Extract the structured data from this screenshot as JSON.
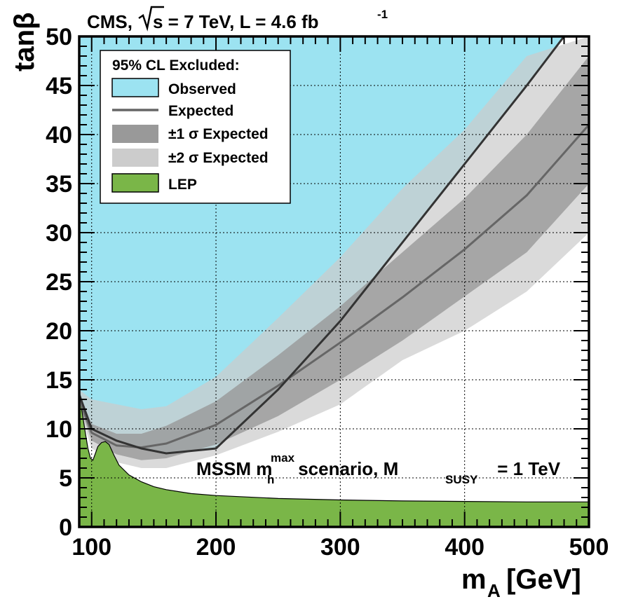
{
  "chart_data": {
    "type": "area",
    "title": "CMS, √s = 7 TeV, L = 4.6 fb-1",
    "header": {
      "experiment": "CMS,",
      "energy": "s = 7 TeV, L = 4.6 fb",
      "lumi_exponent": "-1"
    },
    "xlabel": {
      "main": "m",
      "sub": "A",
      "unit": " [GeV]"
    },
    "ylabel": "tanβ",
    "xlim": [
      90,
      500
    ],
    "ylim": [
      0,
      50
    ],
    "x_ticks": [
      100,
      200,
      300,
      400,
      500
    ],
    "y_ticks": [
      0,
      5,
      10,
      15,
      20,
      25,
      30,
      35,
      40,
      45,
      50
    ],
    "x_tick_labels": [
      "100",
      "200",
      "300",
      "400",
      "500"
    ],
    "y_tick_labels": [
      "0",
      "5",
      "10",
      "15",
      "20",
      "25",
      "30",
      "35",
      "40",
      "45",
      "50"
    ],
    "grid": true,
    "legend": {
      "title": "95% CL Excluded:",
      "position": "top-left",
      "entries": [
        {
          "label": "Observed",
          "style": "fill",
          "color": "#9ce3f1"
        },
        {
          "label": "Expected",
          "style": "line",
          "color": "#666666"
        },
        {
          "label": "±1 σ Expected",
          "style": "fill",
          "color": "#999999"
        },
        {
          "label": "±2 σ Expected",
          "style": "fill",
          "color": "#cccccc"
        },
        {
          "label": "LEP",
          "style": "fill",
          "color": "#7ab648"
        }
      ]
    },
    "annotation": {
      "part1": "MSSM m",
      "part1_sub": "h",
      "part1_sup": "max",
      "part2": " scenario, M",
      "part2_sub": "SUSY",
      "part3": " = 1 TeV"
    },
    "colors": {
      "observed": "#9ce3f1",
      "one_sigma": "#999999",
      "two_sigma": "#cccccc",
      "lep": "#7ab648",
      "expected_line": "#666666",
      "observed_line": "#333333"
    },
    "observed_limit": {
      "x": [
        90,
        100,
        120,
        140,
        160,
        200,
        250,
        300,
        350,
        400,
        450,
        480
      ],
      "y": [
        13.5,
        10.0,
        8.8,
        8.0,
        7.5,
        8.0,
        14.0,
        21.0,
        29.0,
        37.0,
        45.0,
        50.0
      ]
    },
    "expected": {
      "x": [
        90,
        100,
        120,
        140,
        160,
        200,
        250,
        300,
        350,
        400,
        450,
        500
      ],
      "y": [
        13.0,
        9.6,
        8.3,
        8.1,
        8.5,
        10.4,
        14.4,
        18.8,
        23.4,
        28.3,
        33.8,
        41.0
      ]
    },
    "one_sigma": {
      "x": [
        90,
        100,
        120,
        140,
        160,
        200,
        250,
        300,
        350,
        400,
        450,
        500
      ],
      "low": [
        12.5,
        8.8,
        7.4,
        6.8,
        7.0,
        8.4,
        11.3,
        15.0,
        19.0,
        23.5,
        28.0,
        35.0
      ],
      "high": [
        13.5,
        10.5,
        9.5,
        9.5,
        10.3,
        12.8,
        17.5,
        22.5,
        28.0,
        33.5,
        40.0,
        48.0
      ]
    },
    "two_sigma": {
      "x": [
        90,
        100,
        120,
        140,
        160,
        200,
        250,
        300,
        350,
        400,
        450,
        500
      ],
      "low": [
        12.0,
        8.0,
        6.6,
        6.0,
        6.0,
        7.3,
        9.7,
        12.5,
        17.0,
        20.0,
        24.0,
        30.0
      ],
      "high": [
        14.0,
        13.0,
        12.5,
        12.0,
        12.3,
        15.3,
        21.3,
        27.5,
        34.5,
        40.5,
        48.0,
        50.0
      ]
    },
    "lep": {
      "x": [
        90,
        92,
        95,
        97,
        99,
        101,
        103,
        105,
        108,
        111,
        114,
        118,
        122,
        130,
        140,
        150,
        160,
        180,
        200,
        250,
        300,
        350,
        400,
        450,
        500
      ],
      "y": [
        13.5,
        12.0,
        9.5,
        8.0,
        7.0,
        6.8,
        7.5,
        8.2,
        8.6,
        8.7,
        8.4,
        7.3,
        6.3,
        5.3,
        4.6,
        4.1,
        3.8,
        3.4,
        3.2,
        2.9,
        2.75,
        2.65,
        2.6,
        2.55,
        2.55
      ]
    }
  }
}
